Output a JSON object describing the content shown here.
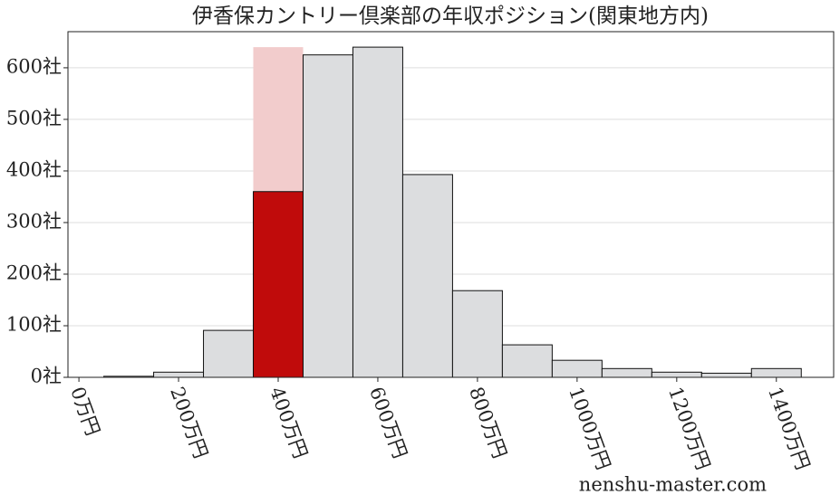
{
  "chart_data": {
    "type": "histogram",
    "title": "伊香保カントリー倶楽部の年収ポジション(関東地方内)",
    "bins": [
      50,
      150,
      250,
      350,
      450,
      550,
      650,
      750,
      850,
      950,
      1050,
      1150,
      1250,
      1350,
      1450
    ],
    "values": [
      2,
      10,
      91,
      360,
      625,
      640,
      393,
      168,
      63,
      33,
      17,
      10,
      8,
      17
    ],
    "color": "#dcdddf",
    "highlight_bin": 3,
    "highlight_color": "#c00b0b",
    "highlight_band_color": "#f2cccc",
    "xlim": [
      -22,
      1515
    ],
    "ylim": [
      0,
      670
    ],
    "xticks": [
      {
        "value": 0,
        "label": "0万円"
      },
      {
        "value": 200,
        "label": "200万円"
      },
      {
        "value": 400,
        "label": "400万円"
      },
      {
        "value": 600,
        "label": "600万円"
      },
      {
        "value": 800,
        "label": "800万円"
      },
      {
        "value": 1000,
        "label": "1000万円"
      },
      {
        "value": 1200,
        "label": "1200万円"
      },
      {
        "value": 1400,
        "label": "1400万円"
      }
    ],
    "yticks": [
      {
        "value": 0,
        "label": "0社"
      },
      {
        "value": 100,
        "label": "100社"
      },
      {
        "value": 200,
        "label": "200社"
      },
      {
        "value": 300,
        "label": "300社"
      },
      {
        "value": 400,
        "label": "400社"
      },
      {
        "value": 500,
        "label": "500社"
      },
      {
        "value": 600,
        "label": "600社"
      }
    ],
    "grid": true,
    "watermark": "nenshu-master.com"
  }
}
